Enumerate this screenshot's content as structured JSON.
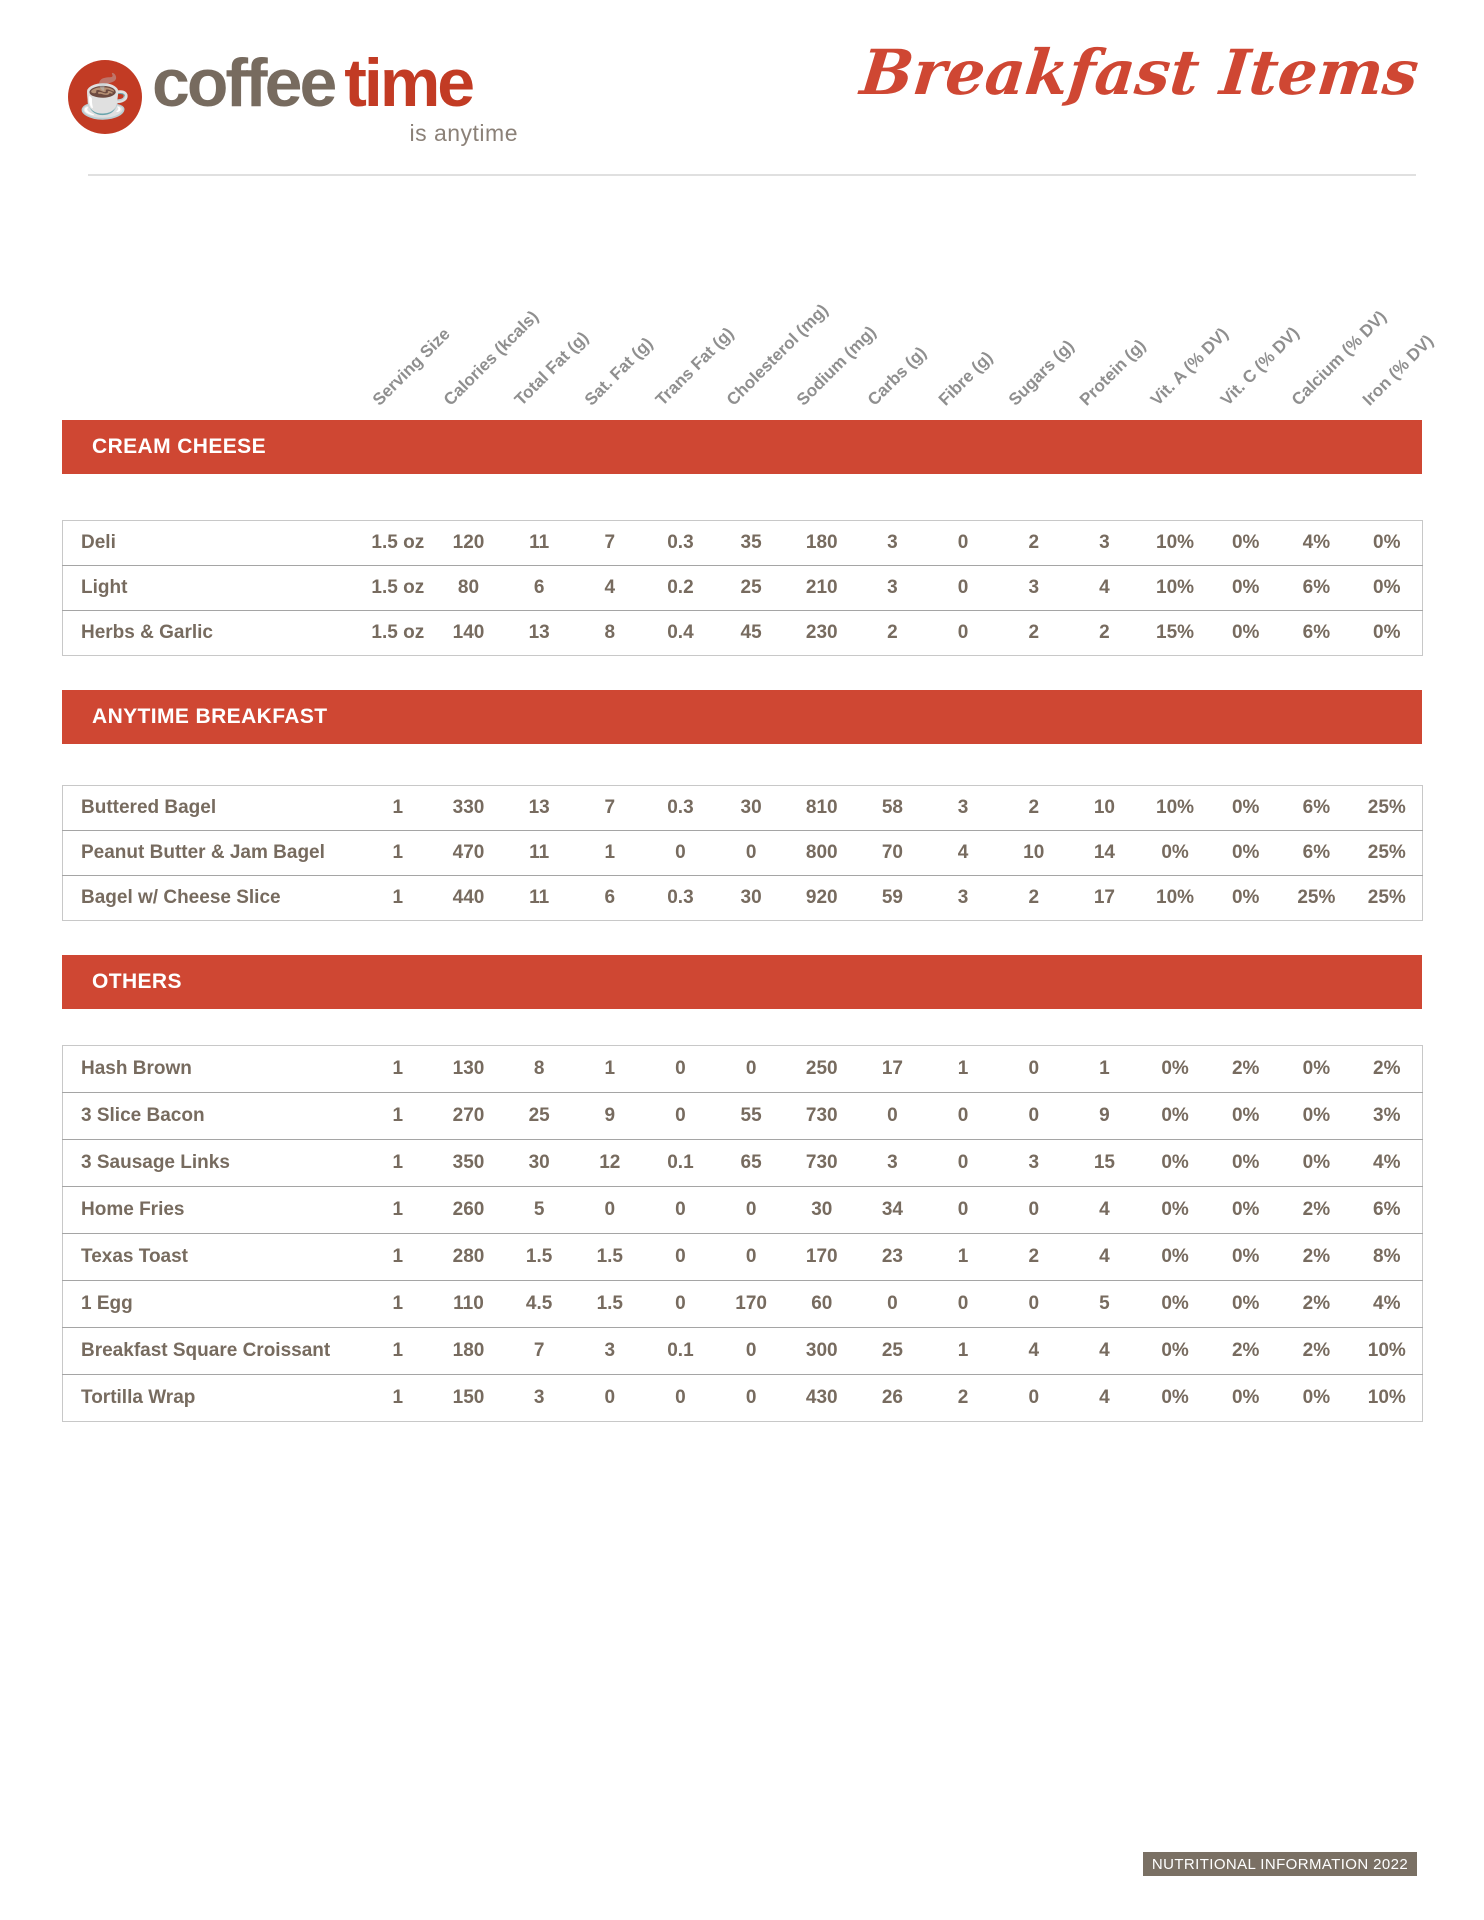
{
  "brand": {
    "logo_icon": "coffee-cup",
    "logo_word_coffee": "coffee",
    "logo_word_time": "time",
    "logo_tagline": "is anytime",
    "script_title": "Breakfast Items"
  },
  "colors": {
    "accent_red": "#cf4733",
    "logo_red": "#c23b24",
    "text_taupe": "#776b5f",
    "header_gray": "#8f8f8f",
    "footer_bg": "#7a7064"
  },
  "table": {
    "columns": [
      "Serving Size",
      "Calories (kcals)",
      "Total Fat (g)",
      "Sat. Fat (g)",
      "Trans Fat (g)",
      "Cholesterol (mg)",
      "Sodium (mg)",
      "Carbs (g)",
      "Fibre (g)",
      "Sugars (g)",
      "Protein (g)",
      "Vit. A (% DV)",
      "Vit. C (% DV)",
      "Calcium (% DV)",
      "Iron (% DV)"
    ]
  },
  "sections": [
    {
      "title": "CREAM CHEESE",
      "rows": [
        {
          "label": "Deli",
          "values": [
            "1.5 oz",
            "120",
            "11",
            "7",
            "0.3",
            "35",
            "180",
            "3",
            "0",
            "2",
            "3",
            "10%",
            "0%",
            "4%",
            "0%"
          ]
        },
        {
          "label": "Light",
          "values": [
            "1.5 oz",
            "80",
            "6",
            "4",
            "0.2",
            "25",
            "210",
            "3",
            "0",
            "3",
            "4",
            "10%",
            "0%",
            "6%",
            "0%"
          ]
        },
        {
          "label": "Herbs & Garlic",
          "values": [
            "1.5 oz",
            "140",
            "13",
            "8",
            "0.4",
            "45",
            "230",
            "2",
            "0",
            "2",
            "2",
            "15%",
            "0%",
            "6%",
            "0%"
          ]
        }
      ]
    },
    {
      "title": "ANYTIME BREAKFAST",
      "rows": [
        {
          "label": "Buttered Bagel",
          "values": [
            "1",
            "330",
            "13",
            "7",
            "0.3",
            "30",
            "810",
            "58",
            "3",
            "2",
            "10",
            "10%",
            "0%",
            "6%",
            "25%"
          ]
        },
        {
          "label": "Peanut Butter & Jam Bagel",
          "values": [
            "1",
            "470",
            "11",
            "1",
            "0",
            "0",
            "800",
            "70",
            "4",
            "10",
            "14",
            "0%",
            "0%",
            "6%",
            "25%"
          ]
        },
        {
          "label": "Bagel w/ Cheese Slice",
          "values": [
            "1",
            "440",
            "11",
            "6",
            "0.3",
            "30",
            "920",
            "59",
            "3",
            "2",
            "17",
            "10%",
            "0%",
            "25%",
            "25%"
          ]
        }
      ]
    },
    {
      "title": "OTHERS",
      "rows": [
        {
          "label": "Hash Brown",
          "values": [
            "1",
            "130",
            "8",
            "1",
            "0",
            "0",
            "250",
            "17",
            "1",
            "0",
            "1",
            "0%",
            "2%",
            "0%",
            "2%"
          ]
        },
        {
          "label": "3 Slice Bacon",
          "values": [
            "1",
            "270",
            "25",
            "9",
            "0",
            "55",
            "730",
            "0",
            "0",
            "0",
            "9",
            "0%",
            "0%",
            "0%",
            "3%"
          ]
        },
        {
          "label": "3 Sausage Links",
          "values": [
            "1",
            "350",
            "30",
            "12",
            "0.1",
            "65",
            "730",
            "3",
            "0",
            "3",
            "15",
            "0%",
            "0%",
            "0%",
            "4%"
          ]
        },
        {
          "label": "Home Fries",
          "values": [
            "1",
            "260",
            "5",
            "0",
            "0",
            "0",
            "30",
            "34",
            "0",
            "0",
            "4",
            "0%",
            "0%",
            "2%",
            "6%"
          ]
        },
        {
          "label": "Texas Toast",
          "values": [
            "1",
            "280",
            "1.5",
            "1.5",
            "0",
            "0",
            "170",
            "23",
            "1",
            "2",
            "4",
            "0%",
            "0%",
            "2%",
            "8%"
          ]
        },
        {
          "label": "1 Egg",
          "values": [
            "1",
            "110",
            "4.5",
            "1.5",
            "0",
            "170",
            "60",
            "0",
            "0",
            "0",
            "5",
            "0%",
            "0%",
            "2%",
            "4%"
          ]
        },
        {
          "label": "Breakfast Square Croissant",
          "values": [
            "1",
            "180",
            "7",
            "3",
            "0.1",
            "0",
            "300",
            "25",
            "1",
            "4",
            "4",
            "0%",
            "2%",
            "2%",
            "10%"
          ]
        },
        {
          "label": "Tortilla Wrap",
          "values": [
            "1",
            "150",
            "3",
            "0",
            "0",
            "0",
            "430",
            "26",
            "2",
            "0",
            "4",
            "0%",
            "0%",
            "0%",
            "10%"
          ]
        }
      ]
    }
  ],
  "footer": {
    "badge": "NUTRITIONAL INFORMATION 2022"
  }
}
